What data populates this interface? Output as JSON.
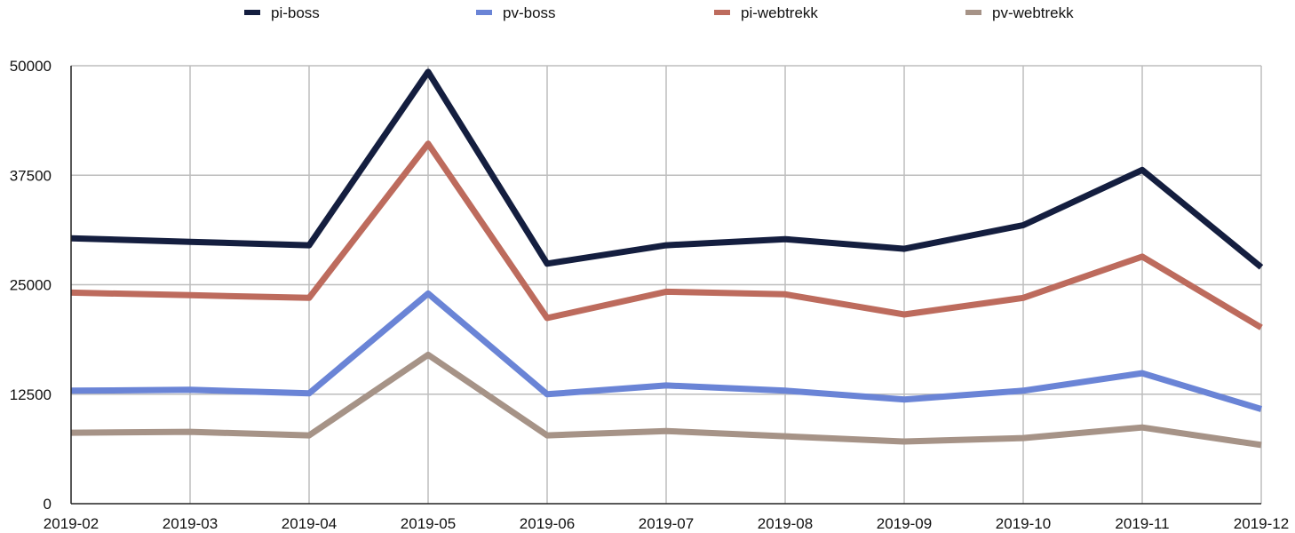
{
  "chart_data": {
    "type": "line",
    "title": "",
    "xlabel": "",
    "ylabel": "",
    "categories": [
      "2019-02",
      "2019-03",
      "2019-04",
      "2019-05",
      "2019-06",
      "2019-07",
      "2019-08",
      "2019-09",
      "2019-10",
      "2019-11",
      "2019-12"
    ],
    "ylim": [
      0,
      50000
    ],
    "yticks": [
      0,
      12500,
      25000,
      37500,
      50000
    ],
    "ytick_labels": [
      "0",
      "12500",
      "25000",
      "37500",
      "50000"
    ],
    "grid": "horizontal-and-vertical",
    "legend_position": "top",
    "series": [
      {
        "name": "pi-boss",
        "color": "#141e3f",
        "values": [
          30300,
          29900,
          29500,
          49300,
          27400,
          29500,
          30200,
          29100,
          31800,
          38100,
          27000
        ]
      },
      {
        "name": "pv-boss",
        "color": "#6a84d6",
        "values": [
          12900,
          13000,
          12600,
          24000,
          12500,
          13500,
          12900,
          11900,
          12900,
          14900,
          10800
        ]
      },
      {
        "name": "pi-webtrekk",
        "color": "#bd6b5d",
        "values": [
          24100,
          23800,
          23500,
          41100,
          21200,
          24200,
          23900,
          21600,
          23500,
          28200,
          20100
        ]
      },
      {
        "name": "pv-webtrekk",
        "color": "#a69387",
        "values": [
          8100,
          8200,
          7800,
          17000,
          7800,
          8300,
          7700,
          7100,
          7500,
          8700,
          6700
        ]
      }
    ]
  }
}
